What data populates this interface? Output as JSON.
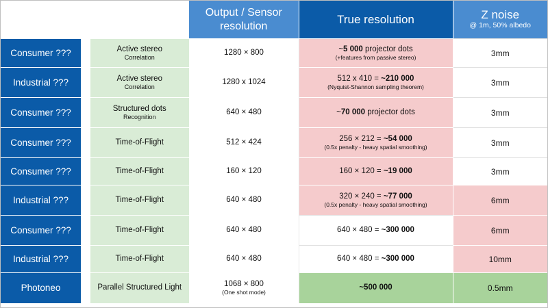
{
  "header": {
    "output_resolution": "Output / Sensor resolution",
    "true_resolution": "True resolution",
    "z_noise_title": "Z noise",
    "z_noise_sub": "@ 1m, 50% albedo"
  },
  "colors": {
    "dark_blue": "#0b5ba8",
    "light_blue": "#4a8cd0",
    "light_green": "#d9ecd6",
    "pink": "#f5cbcc",
    "green": "#a8d39b"
  },
  "rows": [
    {
      "category": "Consumer ???",
      "technology": "Active stereo",
      "technology_sub": "Correlation",
      "resolution": "1280 × 800",
      "resolution_sub": "",
      "true_pre": "~",
      "true_bold": "5 000",
      "true_post": " projector dots",
      "true_sub": "(+features from passive stereo)",
      "true_bg": "pink",
      "z_noise": "3mm",
      "z_bg": "white"
    },
    {
      "category": "Industrial ???",
      "technology": "Active stereo",
      "technology_sub": "Correlation",
      "resolution": "1280 x 1024",
      "resolution_sub": "",
      "true_pre": "512 x 410 = ",
      "true_bold": "~210 000",
      "true_post": "",
      "true_sub": "(Nyquist-Shannon sampling theorem)",
      "true_bg": "pink",
      "z_noise": "3mm",
      "z_bg": "white"
    },
    {
      "category": "Consumer ???",
      "technology": "Structured dots",
      "technology_sub": "Recognition",
      "resolution": "640 × 480",
      "resolution_sub": "",
      "true_pre": "~",
      "true_bold": "70 000",
      "true_post": " projector dots",
      "true_sub": "",
      "true_bg": "pink",
      "z_noise": "3mm",
      "z_bg": "white"
    },
    {
      "category": "Consumer ???",
      "technology": "Time-of-Flight",
      "technology_sub": "",
      "resolution": "512 × 424",
      "resolution_sub": "",
      "true_pre": "256 × 212 = ",
      "true_bold": "~54 000",
      "true_post": "",
      "true_sub": "(0.5x penalty - heavy spatial smoothing)",
      "true_bg": "pink",
      "z_noise": "3mm",
      "z_bg": "white"
    },
    {
      "category": "Consumer ???",
      "technology": "Time-of-Flight",
      "technology_sub": "",
      "resolution": "160 × 120",
      "resolution_sub": "",
      "true_pre": "160 × 120 = ",
      "true_bold": "~19 000",
      "true_post": "",
      "true_sub": "",
      "true_bg": "pink",
      "z_noise": "3mm",
      "z_bg": "white"
    },
    {
      "category": "Industrial ???",
      "technology": "Time-of-Flight",
      "technology_sub": "",
      "resolution": "640 × 480",
      "resolution_sub": "",
      "true_pre": "320 × 240 = ",
      "true_bold": "~77 000",
      "true_post": "",
      "true_sub": "(0.5x penalty - heavy spatial smoothing)",
      "true_bg": "pink",
      "z_noise": "6mm",
      "z_bg": "pink"
    },
    {
      "category": "Consumer ???",
      "technology": "Time-of-Flight",
      "technology_sub": "",
      "resolution": "640 × 480",
      "resolution_sub": "",
      "true_pre": "640 × 480 = ",
      "true_bold": "~300 000",
      "true_post": "",
      "true_sub": "",
      "true_bg": "white",
      "z_noise": "6mm",
      "z_bg": "pink"
    },
    {
      "category": "Industrial ???",
      "technology": "Time-of-Flight",
      "technology_sub": "",
      "resolution": "640 × 480",
      "resolution_sub": "",
      "true_pre": "640 × 480 = ",
      "true_bold": "~300 000",
      "true_post": "",
      "true_sub": "",
      "true_bg": "white",
      "z_noise": "10mm",
      "z_bg": "pink"
    },
    {
      "category": "Photoneo",
      "technology": "Parallel Structured Light",
      "technology_sub": "",
      "resolution": "1068 × 800",
      "resolution_sub": "(One shot mode)",
      "true_pre": "",
      "true_bold": "~500 000",
      "true_post": "",
      "true_sub": "",
      "true_bg": "green",
      "z_noise": "0.5mm",
      "z_bg": "green"
    }
  ]
}
